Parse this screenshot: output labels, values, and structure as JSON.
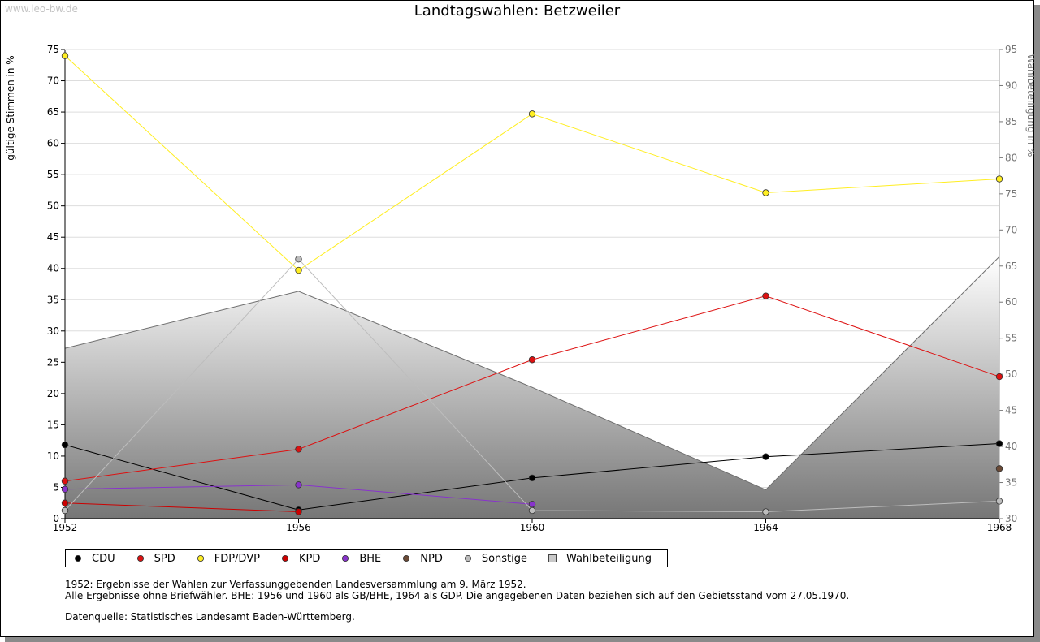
{
  "watermark": "www.leo-bw.de",
  "colors": {
    "CDU": "#000000",
    "SPD": "#dd1111",
    "FDP/DVP": "#ffee22",
    "KPD": "#cc0000",
    "BHE": "#8833cc",
    "NPD": "#6b4a36",
    "Sonstige": "#bdbdbd",
    "Wahlbeteiligung": "#c8c8c8"
  },
  "chart_data": {
    "type": "line",
    "title": "Landtagswahlen: Betzweiler",
    "ylabel": "gültige Stimmen in %",
    "y2label": "Wahlbeteiligung in %",
    "x": [
      "1952",
      "1956",
      "1960",
      "1964",
      "1968"
    ],
    "ylim": [
      0,
      75
    ],
    "y2lim": [
      30,
      95
    ],
    "yticks": [
      0,
      5,
      10,
      15,
      20,
      25,
      30,
      35,
      40,
      45,
      50,
      55,
      60,
      65,
      70,
      75
    ],
    "y2ticks": [
      30,
      35,
      40,
      45,
      50,
      55,
      60,
      65,
      70,
      75,
      80,
      85,
      90,
      95
    ],
    "grid": true,
    "series": [
      {
        "name": "CDU",
        "values": [
          11.8,
          1.4,
          6.5,
          9.9,
          12.0
        ]
      },
      {
        "name": "SPD",
        "values": [
          6.0,
          11.1,
          25.4,
          35.6,
          22.7
        ]
      },
      {
        "name": "FDP/DVP",
        "values": [
          74.0,
          39.7,
          64.7,
          52.1,
          54.3
        ]
      },
      {
        "name": "KPD",
        "values": [
          2.5,
          1.1,
          null,
          null,
          null
        ]
      },
      {
        "name": "BHE",
        "values": [
          4.7,
          5.4,
          2.3,
          null,
          null
        ]
      },
      {
        "name": "NPD",
        "values": [
          null,
          null,
          null,
          null,
          8.0
        ]
      },
      {
        "name": "Sonstige",
        "values": [
          1.3,
          41.5,
          1.3,
          1.1,
          2.8
        ]
      },
      {
        "name": "Wahlbeteiligung",
        "axis": "right",
        "type": "area",
        "values": [
          53.6,
          61.5,
          48.2,
          34.0,
          66.3
        ]
      }
    ],
    "legend": [
      "CDU",
      "SPD",
      "FDP/DVP",
      "KPD",
      "BHE",
      "NPD",
      "Sonstige",
      "Wahlbeteiligung"
    ],
    "legend_placement": "bottom"
  },
  "notes": {
    "line1": "1952: Ergebnisse der Wahlen zur Verfassunggebenden Landesversammlung am 9. März 1952.",
    "line2": "Alle Ergebnisse ohne Briefwähler. BHE: 1956 und 1960 als GB/BHE, 1964 als GDP. Die angegebenen Daten beziehen sich auf den Gebietsstand vom 27.05.1970.",
    "source": "Datenquelle: Statistisches Landesamt Baden-Württemberg."
  }
}
